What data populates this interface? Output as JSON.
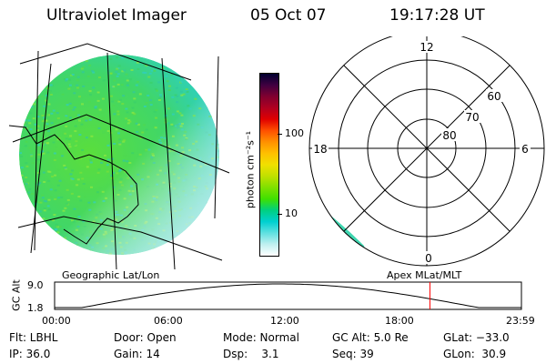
{
  "header": {
    "title": "Ultraviolet Imager",
    "date": "05 Oct 07",
    "time": "19:17:28 UT"
  },
  "geo_map": {
    "caption": "Geographic Lat/Lon"
  },
  "colorbar": {
    "unit_label": "photon cm⁻²s⁻¹",
    "ticks": [
      "100",
      "10"
    ],
    "scale": "log",
    "colors": [
      "#000030",
      "#400040",
      "#800030",
      "#b00020",
      "#e00000",
      "#ff5000",
      "#ff9000",
      "#ffc000",
      "#f0e000",
      "#c0e000",
      "#80e000",
      "#40e000",
      "#00d080",
      "#00d0d0",
      "#60e0e0",
      "#c0f0f0",
      "#ffffff"
    ]
  },
  "polar_plot": {
    "caption": "Apex MLat/MLT",
    "mlt_labels": {
      "top": "12",
      "left": "18",
      "right": "6",
      "bottom": "0"
    },
    "mlat_labels": [
      "60",
      "70",
      "80"
    ]
  },
  "altitude_strip": {
    "ylabel": "GC Alt",
    "yticks": [
      "9.0",
      "1.8"
    ],
    "xticks": [
      "00:00",
      "06:00",
      "12:00",
      "18:00",
      "23:59"
    ],
    "current_time_fraction": 0.804,
    "marker_color": "#ff0000"
  },
  "info": {
    "flt": "Flt: LBHL",
    "door": "Door: Open",
    "mode": "Mode: Normal",
    "gc_alt": "GC Alt: 5.0 Re",
    "glat": "GLat: −33.0",
    "ip": "IP: 36.0",
    "gain": "Gain: 14",
    "dsp": "Dsp:    3.1",
    "seq": "Seq: 39",
    "glon": "GLon:  30.9"
  }
}
